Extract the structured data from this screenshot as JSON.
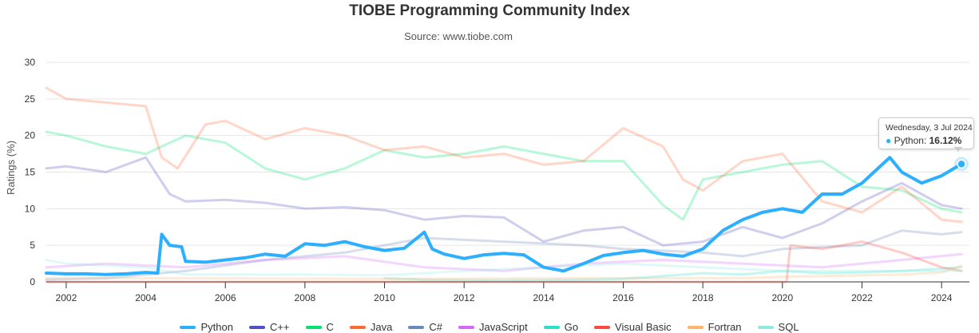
{
  "chart_data": {
    "type": "line",
    "title": "TIOBE Programming Community Index",
    "subtitle": "Source: www.tiobe.com",
    "ylabel": "Ratings (%)",
    "xlabel": "",
    "ylim": [
      0,
      30
    ],
    "xlim": [
      2001.5,
      2024.7
    ],
    "y_ticks": [
      "0",
      "5",
      "10",
      "15",
      "20",
      "25",
      "30"
    ],
    "x_ticks": [
      "2002",
      "2004",
      "2006",
      "2008",
      "2010",
      "2012",
      "2014",
      "2016",
      "2018",
      "2020",
      "2022",
      "2024"
    ],
    "grid": true,
    "legend_position": "bottom",
    "series": [
      {
        "name": "Python",
        "color": "#2caffe",
        "highlighted": true,
        "x": [
          2001.5,
          2002,
          2002.5,
          2003,
          2003.5,
          2004,
          2004.3,
          2004.4,
          2004.6,
          2004.9,
          2005,
          2005.5,
          2006,
          2006.5,
          2007,
          2007.5,
          2008,
          2008.5,
          2009,
          2009.5,
          2010,
          2010.5,
          2011,
          2011.2,
          2011.5,
          2012,
          2012.5,
          2013,
          2013.5,
          2014,
          2014.5,
          2015,
          2015.5,
          2016,
          2016.5,
          2017,
          2017.5,
          2018,
          2018.5,
          2019,
          2019.5,
          2020,
          2020.5,
          2021,
          2021.5,
          2022,
          2022.3,
          2022.7,
          2023,
          2023.5,
          2024,
          2024.5
        ],
        "y": [
          1.2,
          1.1,
          1.1,
          1.0,
          1.1,
          1.3,
          1.2,
          6.5,
          5.0,
          4.8,
          2.8,
          2.7,
          3.0,
          3.3,
          3.8,
          3.5,
          5.2,
          5.0,
          5.5,
          4.8,
          4.3,
          4.6,
          6.8,
          4.5,
          3.8,
          3.2,
          3.7,
          3.9,
          3.7,
          2.0,
          1.5,
          2.5,
          3.6,
          4.0,
          4.3,
          3.8,
          3.5,
          4.5,
          7.0,
          8.5,
          9.5,
          10.0,
          9.5,
          12.0,
          12.0,
          13.5,
          15.0,
          17.0,
          15.0,
          13.5,
          14.5,
          16.1
        ]
      },
      {
        "name": "C++",
        "color": "#544fc5",
        "x": [
          2001.5,
          2002,
          2003,
          2004,
          2004.6,
          2005,
          2006,
          2007,
          2008,
          2009,
          2010,
          2011,
          2012,
          2013,
          2014,
          2015,
          2016,
          2017,
          2018,
          2019,
          2020,
          2021,
          2022,
          2023,
          2024,
          2024.5
        ],
        "y": [
          15.5,
          15.8,
          15.0,
          17.0,
          12.0,
          11.0,
          11.2,
          10.8,
          10.0,
          10.2,
          9.8,
          8.5,
          9.0,
          8.8,
          5.5,
          7.0,
          7.5,
          5.0,
          5.5,
          7.5,
          6.0,
          8.0,
          11.0,
          13.5,
          10.5,
          10.0
        ]
      },
      {
        "name": "C",
        "color": "#00e272",
        "x": [
          2001.5,
          2002,
          2003,
          2004,
          2005,
          2006,
          2007,
          2008,
          2009,
          2010,
          2011,
          2012,
          2013,
          2014,
          2015,
          2016,
          2017,
          2017.5,
          2018,
          2019,
          2020,
          2021,
          2022,
          2023,
          2024,
          2024.5
        ],
        "y": [
          20.5,
          20.0,
          18.5,
          17.5,
          20.0,
          19.0,
          15.5,
          14.0,
          15.5,
          18.0,
          17.0,
          17.5,
          18.5,
          17.5,
          16.5,
          16.5,
          10.5,
          8.5,
          14.0,
          15.0,
          16.0,
          16.5,
          13.0,
          12.5,
          10.0,
          9.5
        ]
      },
      {
        "name": "Java",
        "color": "#fe6a35",
        "x": [
          2001.5,
          2002,
          2003,
          2004,
          2004.4,
          2004.8,
          2005.5,
          2006,
          2007,
          2008,
          2009,
          2010,
          2011,
          2012,
          2013,
          2014,
          2015,
          2016,
          2017,
          2017.5,
          2018,
          2019,
          2020,
          2021,
          2022,
          2023,
          2024,
          2024.5
        ],
        "y": [
          26.5,
          25.0,
          24.5,
          24.0,
          17.0,
          15.5,
          21.5,
          22.0,
          19.5,
          21.0,
          20.0,
          18.0,
          18.5,
          17.0,
          17.5,
          16.0,
          16.5,
          21.0,
          18.5,
          14.0,
          12.5,
          16.5,
          17.5,
          11.0,
          9.5,
          13.0,
          8.5,
          8.2
        ]
      },
      {
        "name": "C#",
        "color": "#6b8abc",
        "x": [
          2001.5,
          2003,
          2005,
          2007,
          2009,
          2011,
          2013,
          2015,
          2016,
          2018,
          2019,
          2020,
          2022,
          2023,
          2024,
          2024.5
        ],
        "y": [
          0.3,
          0.5,
          1.5,
          3.0,
          4.0,
          6.0,
          5.5,
          5.0,
          4.5,
          4.0,
          3.5,
          4.5,
          5.0,
          7.0,
          6.5,
          6.8
        ]
      },
      {
        "name": "JavaScript",
        "color": "#d568fb",
        "x": [
          2001.5,
          2003,
          2005,
          2007,
          2009,
          2011,
          2013,
          2015,
          2017,
          2019,
          2021,
          2023,
          2024.5
        ],
        "y": [
          2.0,
          2.5,
          2.0,
          3.0,
          3.5,
          2.0,
          1.5,
          2.5,
          3.0,
          2.5,
          2.0,
          3.0,
          3.8
        ]
      },
      {
        "name": "Go",
        "color": "#2ee0ca",
        "x": [
          2010,
          2011,
          2013,
          2015,
          2016,
          2017,
          2018,
          2019,
          2020,
          2021,
          2022,
          2023,
          2024,
          2024.5
        ],
        "y": [
          0.5,
          0.3,
          0.2,
          0.3,
          0.4,
          0.8,
          1.2,
          1.0,
          1.5,
          1.2,
          1.3,
          1.5,
          1.8,
          2.0
        ]
      },
      {
        "name": "Visual Basic",
        "color": "#fa4b42",
        "x": [
          2001.5,
          2005,
          2010,
          2015,
          2018,
          2020.1,
          2020.2,
          2021,
          2022,
          2023,
          2024,
          2024.5
        ],
        "y": [
          0.0,
          0.0,
          0.0,
          0.0,
          0.0,
          0.0,
          5.0,
          4.5,
          5.5,
          4.0,
          2.0,
          1.5
        ]
      },
      {
        "name": "Fortran",
        "color": "#feb56a",
        "x": [
          2001.5,
          2005,
          2010,
          2015,
          2019,
          2020,
          2021,
          2022,
          2023,
          2024,
          2024.5
        ],
        "y": [
          0.5,
          0.5,
          0.4,
          0.5,
          0.5,
          0.7,
          0.8,
          0.9,
          1.0,
          1.3,
          2.2
        ]
      },
      {
        "name": "SQL",
        "color": "#91e8e1",
        "x": [
          2001.5,
          2002,
          2004,
          2005,
          2008,
          2010,
          2012,
          2014,
          2016,
          2018,
          2020,
          2022,
          2024,
          2024.5
        ],
        "y": [
          3.0,
          2.5,
          2.0,
          1.0,
          1.0,
          0.9,
          1.5,
          2.0,
          2.5,
          2.0,
          1.5,
          1.5,
          1.5,
          1.5
        ]
      }
    ],
    "tooltip": {
      "date": "Wednesday, 3 Jul 2024",
      "series": "Python",
      "value": "16.12%"
    }
  }
}
